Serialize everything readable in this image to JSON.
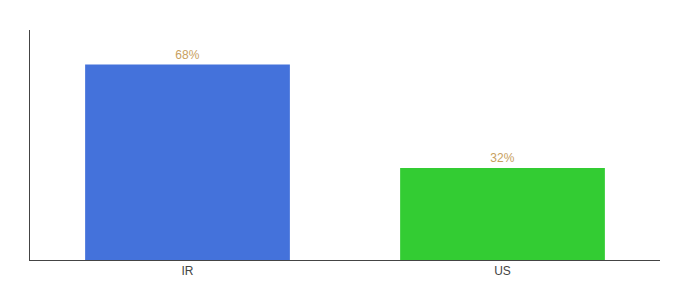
{
  "chart_data": {
    "type": "bar",
    "categories": [
      "IR",
      "US"
    ],
    "values": [
      68,
      32
    ],
    "value_labels": [
      "68%",
      "32%"
    ],
    "colors": [
      "#4472DB",
      "#33CC33"
    ],
    "ylim": [
      0,
      80
    ],
    "grid": false,
    "data_labels": true,
    "tick_labels": "x"
  }
}
